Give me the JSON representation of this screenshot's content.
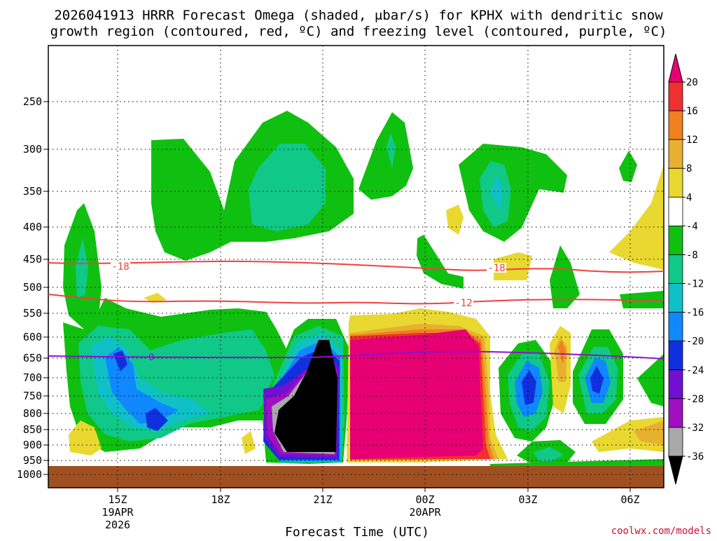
{
  "chart_data": {
    "type": "heatmap",
    "title_line1": "2026041913 HRRR Forecast Omega (shaded, μbar/s) for KPHX with dendritic snow",
    "title_line2": "growth region (contoured, red, ºC) and freezing level (contoured, purple, ºC)",
    "xlabel": "Forecast Time (UTC)",
    "ylabel": "",
    "y_ticks": [
      "250",
      "300",
      "350",
      "400",
      "450",
      "500",
      "550",
      "600",
      "650",
      "700",
      "750",
      "800",
      "850",
      "900",
      "950",
      "1000"
    ],
    "x_ticks": [
      {
        "label": "15Z",
        "sub1": "19APR",
        "sub2": "2026"
      },
      {
        "label": "18Z",
        "sub1": "",
        "sub2": ""
      },
      {
        "label": "21Z",
        "sub1": "",
        "sub2": ""
      },
      {
        "label": "00Z",
        "sub1": "20APR",
        "sub2": ""
      },
      {
        "label": "03Z",
        "sub1": "",
        "sub2": ""
      },
      {
        "label": "06Z",
        "sub1": "",
        "sub2": ""
      }
    ],
    "colorbar": {
      "labels": [
        "20",
        "16",
        "12",
        "8",
        "4",
        "-4",
        "-8",
        "-12",
        "-16",
        "-20",
        "-24",
        "-28",
        "-32",
        "-36"
      ],
      "colors": [
        "#e60073",
        "#f03030",
        "#f08020",
        "#e8b030",
        "#e8d830",
        "#ffffff",
        "#10c010",
        "#10c888",
        "#10c0c8",
        "#1088ff",
        "#1030e0",
        "#7010d0",
        "#a010c0",
        "#a8a8a8",
        "#000000"
      ]
    },
    "contours": [
      {
        "value": "-18",
        "color": "#f04040"
      },
      {
        "value": "-12",
        "color": "#f04040"
      },
      {
        "value": "0",
        "color": "#9010d0"
      }
    ],
    "credit": "coolwx.com/models"
  }
}
